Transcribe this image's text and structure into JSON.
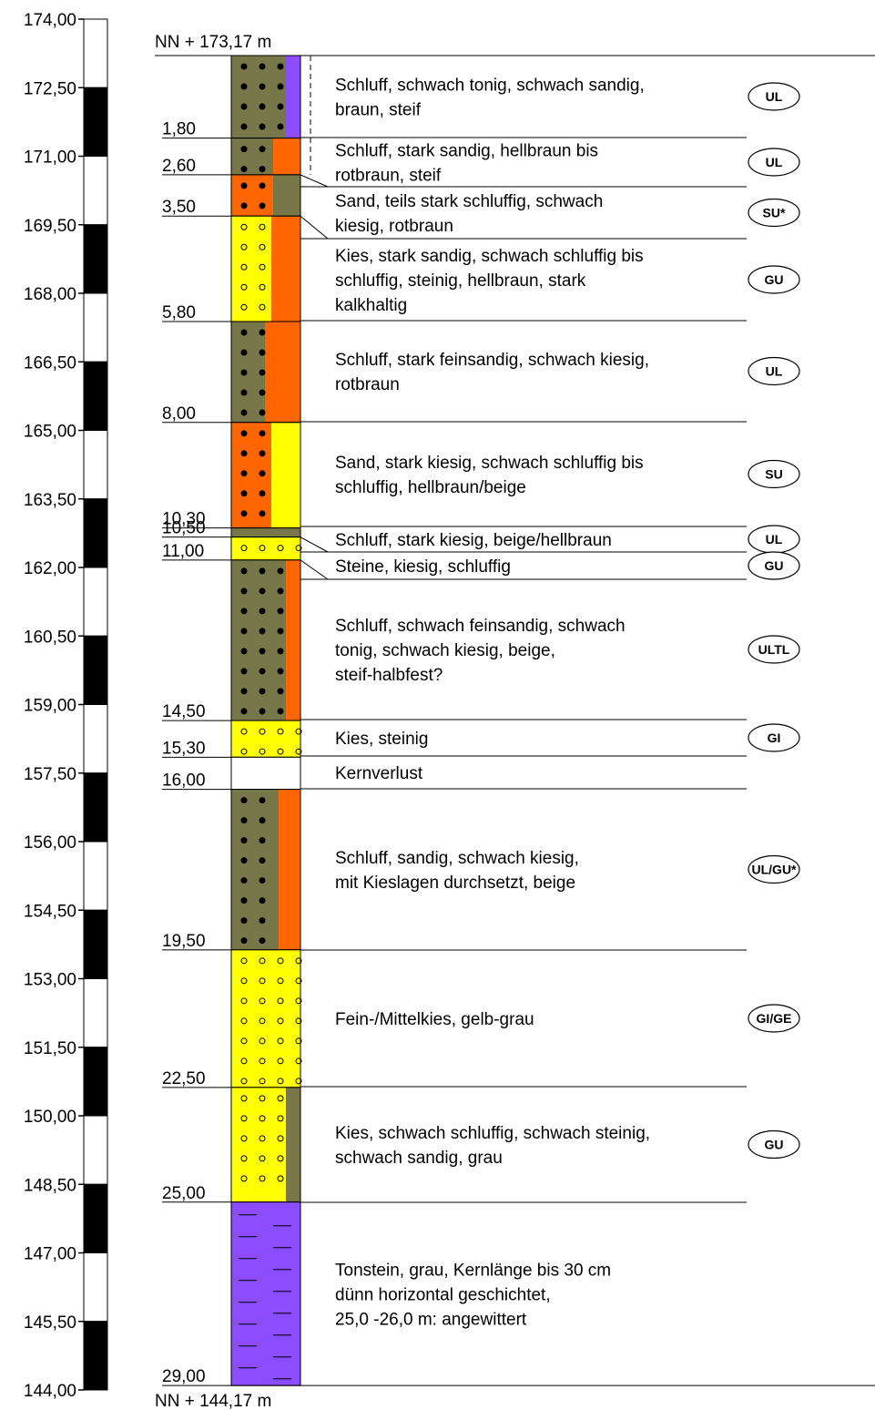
{
  "scale": {
    "ticks": [
      "174,00",
      "172,50",
      "171,00",
      "169,50",
      "168,00",
      "166,50",
      "165,00",
      "163,50",
      "162,00",
      "160,50",
      "159,00",
      "157,50",
      "156,00",
      "154,50",
      "153,00",
      "151,50",
      "150,00",
      "148,50",
      "147,00",
      "145,50",
      "144,00"
    ]
  },
  "top_label": "NN + 173,17 m",
  "bottom_label": "NN + 144,17 m",
  "layers": [
    {
      "depth": "1,80",
      "description": [
        "Schluff, schwach tonig, schwach sandig,",
        "braun, steif"
      ],
      "code": "UL"
    },
    {
      "depth": "2,60",
      "description": [
        "Schluff, stark sandig, hellbraun bis",
        "rotbraun, steif"
      ],
      "code": "UL"
    },
    {
      "depth": "3,50",
      "description": [
        "Sand, teils stark schluffig, schwach",
        "kiesig, rotbraun"
      ],
      "code": "SU*"
    },
    {
      "depth": "5,80",
      "description": [
        "Kies, stark sandig, schwach schluffig bis",
        "schluffig, steinig, hellbraun, stark",
        "kalkhaltig"
      ],
      "code": "GU"
    },
    {
      "depth": "8,00",
      "description": [
        "Schluff, stark feinsandig, schwach kiesig,",
        "rotbraun"
      ],
      "code": "UL"
    },
    {
      "depth": "10,30",
      "description": [
        "Sand, stark kiesig, schwach schluffig bis",
        "schluffig, hellbraun/beige"
      ],
      "code": "SU"
    },
    {
      "depth": "10,50",
      "description": [
        "Schluff, stark kiesig, beige/hellbraun"
      ],
      "code": "UL"
    },
    {
      "depth": "11,00",
      "description": [
        "Steine, kiesig, schluffig"
      ],
      "code": "GU"
    },
    {
      "depth": "14,50",
      "description": [
        "Schluff, schwach feinsandig, schwach",
        "tonig, schwach kiesig, beige,",
        "steif-halbfest?"
      ],
      "code": "ULTL"
    },
    {
      "depth": "15,30",
      "description": [
        "Kies, steinig"
      ],
      "code": "GI"
    },
    {
      "depth": "16,00",
      "description": [
        "Kernverlust"
      ]
    },
    {
      "depth": "19,50",
      "description": [
        "Schluff, sandig, schwach kiesig,",
        "mit Kieslagen durchsetzt, beige"
      ],
      "code": "UL/GU*"
    },
    {
      "depth": "22,50",
      "description": [
        "Fein-/Mittelkies, gelb-grau"
      ],
      "code": "GI/GE"
    },
    {
      "depth": "25,00",
      "description": [
        "Kies, schwach schluffig, schwach steinig,",
        "schwach sandig, grau"
      ],
      "code": "GU"
    },
    {
      "depth": "29,00",
      "description": [
        "Tonstein, grau, Kernlänge bis 30 cm",
        "dünn horizontal geschichtet,",
        "25,0 -26,0 m: angewittert"
      ]
    }
  ]
}
